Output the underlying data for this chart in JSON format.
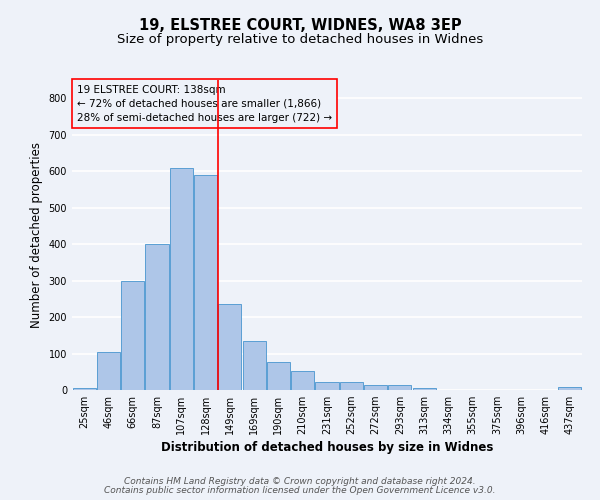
{
  "title1": "19, ELSTREE COURT, WIDNES, WA8 3EP",
  "title2": "Size of property relative to detached houses in Widnes",
  "xlabel": "Distribution of detached houses by size in Widnes",
  "ylabel": "Number of detached properties",
  "categories": [
    "25sqm",
    "46sqm",
    "66sqm",
    "87sqm",
    "107sqm",
    "128sqm",
    "149sqm",
    "169sqm",
    "190sqm",
    "210sqm",
    "231sqm",
    "252sqm",
    "272sqm",
    "293sqm",
    "313sqm",
    "334sqm",
    "355sqm",
    "375sqm",
    "396sqm",
    "416sqm",
    "437sqm"
  ],
  "values": [
    5,
    105,
    300,
    400,
    610,
    590,
    235,
    135,
    78,
    52,
    22,
    22,
    13,
    13,
    5,
    0,
    0,
    0,
    0,
    0,
    8
  ],
  "bar_color": "#aec6e8",
  "bar_edge_color": "#5a9fd4",
  "ylim": [
    0,
    850
  ],
  "yticks": [
    0,
    100,
    200,
    300,
    400,
    500,
    600,
    700,
    800
  ],
  "property_label": "19 ELSTREE COURT: 138sqm",
  "line1": "← 72% of detached houses are smaller (1,866)",
  "line2": "28% of semi-detached houses are larger (722) →",
  "red_line_x": 5.5,
  "footnote1": "Contains HM Land Registry data © Crown copyright and database right 2024.",
  "footnote2": "Contains public sector information licensed under the Open Government Licence v3.0.",
  "background_color": "#eef2f9",
  "grid_color": "#ffffff",
  "title_fontsize": 10.5,
  "subtitle_fontsize": 9.5,
  "axis_label_fontsize": 8.5,
  "tick_fontsize": 7,
  "annotation_fontsize": 7.5,
  "footnote_fontsize": 6.5
}
